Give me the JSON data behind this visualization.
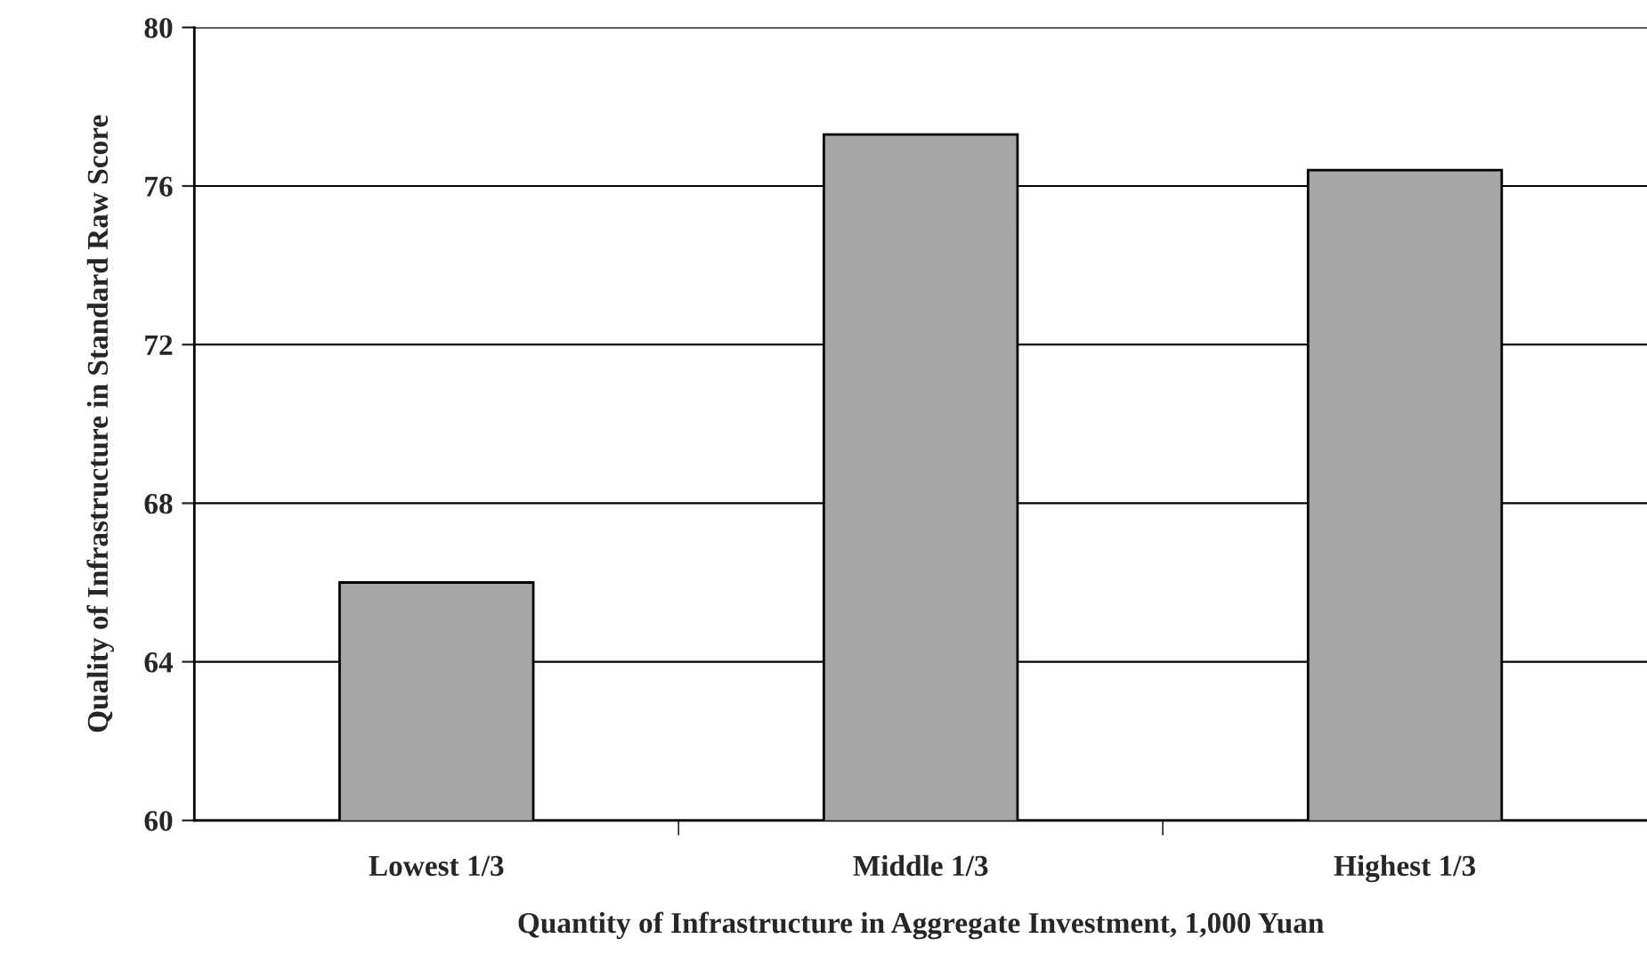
{
  "chart_data": {
    "type": "bar",
    "xlabel": "Quantity of Infrastructure in Aggregate Investment, 1,000 Yuan",
    "ylabel": "Quality of Infrastructure in Standard Raw Score",
    "categories": [
      "Lowest 1/3",
      "Middle 1/3",
      "Highest 1/3"
    ],
    "values": [
      66.0,
      77.3,
      76.4
    ],
    "color": "#a6a6a6",
    "ylim": [
      60,
      80
    ],
    "yticks": [
      60,
      64,
      68,
      72,
      76,
      80
    ],
    "grid": "y",
    "legend": false
  }
}
